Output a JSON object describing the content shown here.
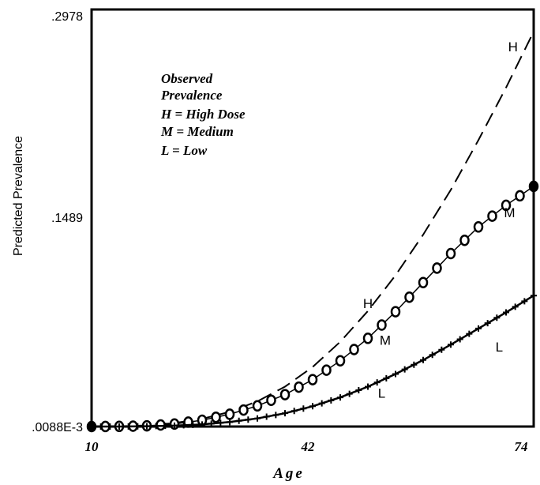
{
  "chart_data": {
    "type": "line",
    "title": "",
    "xlabel": "Age",
    "ylabel": "Predicted Prevalence",
    "x_ticks": [
      "10",
      "42",
      "74"
    ],
    "y_ticks": [
      ".0088E-3",
      ".1489",
      ".2978"
    ],
    "xlim": [
      10,
      74
    ],
    "ylim": [
      0,
      0.2978
    ],
    "legend_lines": [
      "Observed",
      "Prevalence",
      "H = High Dose",
      "M = Medium",
      "L = Low"
    ],
    "legend_position": "top-left",
    "series": [
      {
        "name": "H",
        "style": "dashed",
        "x": [
          10,
          14,
          18,
          22,
          26,
          30,
          34,
          38,
          42,
          46,
          50,
          54,
          58,
          62,
          66,
          70,
          74
        ],
        "y": [
          0.0,
          0.0002,
          0.0008,
          0.0025,
          0.0055,
          0.0105,
          0.018,
          0.0285,
          0.0425,
          0.0605,
          0.0825,
          0.108,
          0.137,
          0.169,
          0.2045,
          0.242,
          0.282
        ]
      },
      {
        "name": "M",
        "style": "circles",
        "x": [
          10,
          14,
          18,
          22,
          26,
          30,
          34,
          38,
          42,
          46,
          50,
          54,
          58,
          62,
          66,
          70,
          74
        ],
        "y": [
          0.0,
          0.0001,
          0.0005,
          0.0018,
          0.0045,
          0.0088,
          0.0148,
          0.0228,
          0.0335,
          0.047,
          0.063,
          0.082,
          0.1028,
          0.1235,
          0.1425,
          0.158,
          0.1715
        ]
      },
      {
        "name": "L",
        "style": "solid-markers",
        "x": [
          10,
          14,
          18,
          22,
          26,
          30,
          34,
          38,
          42,
          46,
          50,
          54,
          58,
          62,
          66,
          70,
          74
        ],
        "y": [
          0.0,
          0.0,
          0.0002,
          0.0006,
          0.0015,
          0.0032,
          0.0058,
          0.0095,
          0.0145,
          0.0208,
          0.0285,
          0.0375,
          0.0475,
          0.0585,
          0.07,
          0.0815,
          0.0935
        ]
      }
    ],
    "curve_labels": [
      {
        "text": "H",
        "x": 71,
        "y": 0.268
      },
      {
        "text": "H",
        "x": 50,
        "y": 0.0845
      },
      {
        "text": "M",
        "x": 70.5,
        "y": 0.1495
      },
      {
        "text": "M",
        "x": 52.5,
        "y": 0.0585
      },
      {
        "text": "L",
        "x": 69,
        "y": 0.0535
      },
      {
        "text": "L",
        "x": 52,
        "y": 0.0205
      }
    ]
  }
}
